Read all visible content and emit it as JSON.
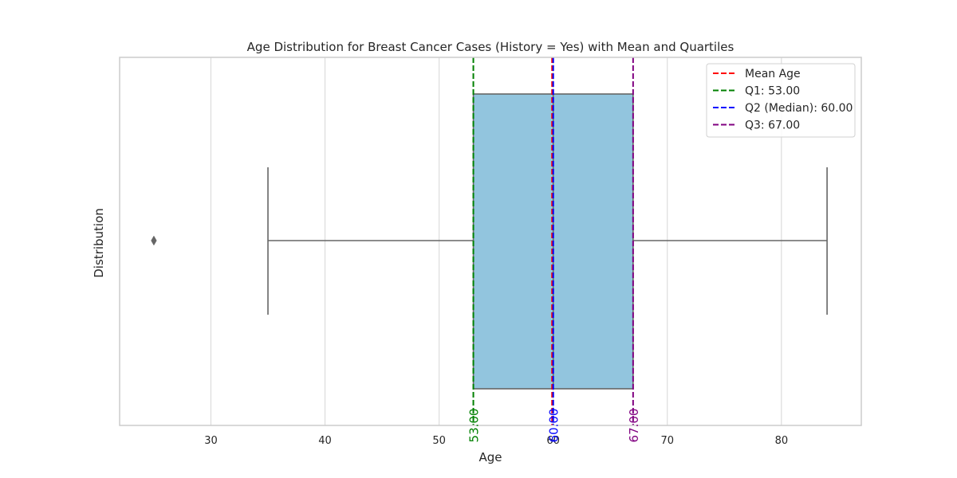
{
  "chart_data": {
    "type": "box",
    "title": "Age Distribution for Breast Cancer Cases (History = Yes) with Mean and Quartiles",
    "xlabel": "Age",
    "ylabel": "Distribution",
    "xlim": [
      22,
      87
    ],
    "x_ticks": [
      30,
      40,
      50,
      60,
      70,
      80
    ],
    "grid": true,
    "legend_position": "top-right",
    "box": {
      "whisker_low": 35,
      "q1": 53,
      "median": 60,
      "q3": 67,
      "whisker_high": 84,
      "outliers": [
        25
      ],
      "fill_color": "#92c5de",
      "line_color": "#666666"
    },
    "reference_lines": [
      {
        "name": "Mean Age",
        "value": 59.9,
        "color": "#ff0000",
        "annotation": ""
      },
      {
        "name": "Q1: 53.00",
        "value": 53,
        "color": "#008000",
        "annotation": "53.00"
      },
      {
        "name": "Q2 (Median): 60.00",
        "value": 60,
        "color": "#0000ff",
        "annotation": "60.00"
      },
      {
        "name": "Q3: 67.00",
        "value": 67,
        "color": "#800080",
        "annotation": "67.00"
      }
    ]
  }
}
